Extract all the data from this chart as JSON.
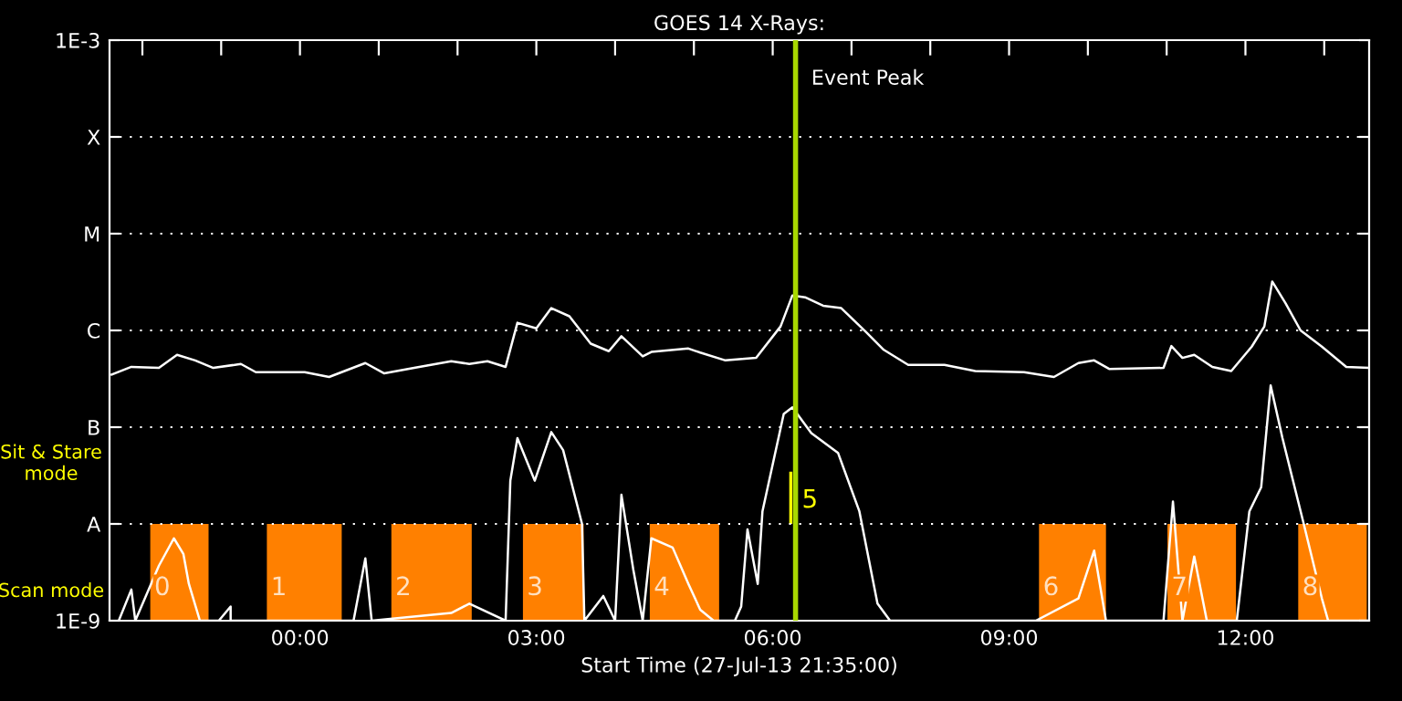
{
  "chart_data": {
    "type": "line",
    "title": "GOES 14 X-Rays:",
    "xlabel": "Start Time (27-Jul-13 21:35:00)",
    "log": "y",
    "grid": "y",
    "xlim": [
      -2.417,
      13.57
    ],
    "xticks": [
      {
        "value": -2,
        "label": null
      },
      {
        "value": -1,
        "label": null
      },
      {
        "value": 0,
        "label": "00:00"
      },
      {
        "value": 1,
        "label": null
      },
      {
        "value": 2,
        "label": null
      },
      {
        "value": 3,
        "label": "03:00"
      },
      {
        "value": 4,
        "label": null
      },
      {
        "value": 5,
        "label": null
      },
      {
        "value": 6,
        "label": "06:00"
      },
      {
        "value": 7,
        "label": null
      },
      {
        "value": 8,
        "label": null
      },
      {
        "value": 9,
        "label": "09:00"
      },
      {
        "value": 10,
        "label": null
      },
      {
        "value": 11,
        "label": null
      },
      {
        "value": 12,
        "label": "12:00"
      },
      {
        "value": 13,
        "label": null
      }
    ],
    "ylim": [
      1e-09,
      0.001
    ],
    "yticks": [
      {
        "value": 1e-09,
        "label": "1E-9"
      },
      {
        "value": 1e-08,
        "label": "A"
      },
      {
        "value": 1e-07,
        "label": "B"
      },
      {
        "value": 1e-06,
        "label": "C"
      },
      {
        "value": 1e-05,
        "label": "M"
      },
      {
        "value": 0.0001,
        "label": "X"
      },
      {
        "value": 0.001,
        "label": "1E-3"
      }
    ],
    "series": [
      {
        "color": "#ffffff",
        "x": [
          -2.39,
          -2.14,
          -1.79,
          -1.56,
          -1.33,
          -1.1,
          -0.75,
          -0.56,
          0.06,
          0.37,
          0.83,
          1.07,
          1.45,
          1.92,
          2.15,
          2.38,
          2.61,
          2.76,
          3.0,
          3.19,
          3.42,
          3.69,
          3.92,
          4.08,
          4.35,
          4.46,
          4.93,
          5.08,
          5.4,
          5.79,
          6.1,
          6.25,
          6.41,
          6.64,
          6.87,
          7.18,
          7.41,
          7.72,
          8.18,
          8.57,
          9.19,
          9.57,
          9.88,
          10.08,
          10.27,
          10.96,
          11.06,
          11.2,
          11.35,
          11.58,
          11.82,
          12.08,
          12.24,
          12.34,
          12.51,
          12.7,
          12.97,
          13.28,
          13.56
        ],
        "values": [
          3.5e-07,
          4.2e-07,
          4.1e-07,
          5.6e-07,
          4.9e-07,
          4.1e-07,
          4.5e-07,
          3.7e-07,
          3.7e-07,
          3.3e-07,
          4.6e-07,
          3.6e-07,
          4.1e-07,
          4.8e-07,
          4.5e-07,
          4.8e-07,
          4.2e-07,
          1.2e-06,
          1.05e-06,
          1.7e-06,
          1.4e-06,
          7.3e-07,
          6.1e-07,
          8.7e-07,
          5.4e-07,
          6e-07,
          6.5e-07,
          5.9e-07,
          4.9e-07,
          5.2e-07,
          1.1e-06,
          2.3e-06,
          2.2e-06,
          1.8e-06,
          1.7e-06,
          9.7e-07,
          6.3e-07,
          4.4e-07,
          4.4e-07,
          3.8e-07,
          3.7e-07,
          3.3e-07,
          4.6e-07,
          4.9e-07,
          4e-07,
          4.1e-07,
          6.9e-07,
          5.2e-07,
          5.6e-07,
          4.2e-07,
          3.8e-07,
          6.8e-07,
          1.1e-06,
          3.2e-06,
          1.9e-06,
          1e-06,
          6.8e-07,
          4.2e-07,
          4.1e-07
        ]
      },
      {
        "color": "#ffffff",
        "x": [
          -2.3,
          -2.14,
          -2.09,
          -1.79,
          -1.6,
          -1.48,
          -1.41,
          -1.27,
          -1.03,
          -0.88,
          -0.88,
          0.68,
          0.83,
          0.91,
          1.92,
          2.15,
          2.61,
          2.67,
          2.76,
          2.98,
          3.19,
          3.34,
          3.58,
          3.61,
          3.85,
          4.0,
          4.08,
          4.23,
          4.35,
          4.46,
          4.73,
          4.93,
          5.08,
          5.25,
          5.52,
          5.6,
          5.68,
          5.81,
          5.87,
          6.14,
          6.25,
          6.49,
          6.83,
          7.1,
          7.33,
          7.49,
          9.34,
          9.88,
          10.08,
          10.23,
          10.96,
          11.08,
          11.2,
          11.35,
          11.51,
          11.89,
          12.05,
          12.2,
          12.32,
          12.47,
          12.74,
          12.97,
          13.05,
          13.56
        ],
        "values": [
          1e-09,
          2.1e-09,
          1e-09,
          3.7e-09,
          7.1e-09,
          4.9e-09,
          2.4e-09,
          1e-09,
          1e-09,
          1.4e-09,
          1e-09,
          1e-09,
          4.4e-09,
          1e-09,
          1.2e-09,
          1.5e-09,
          1e-09,
          2.8e-08,
          7.7e-08,
          2.8e-08,
          8.9e-08,
          5.8e-08,
          1e-08,
          1e-09,
          1.8e-09,
          1e-09,
          2e-08,
          3.4e-09,
          1e-09,
          7.1e-09,
          5.7e-09,
          2.4e-09,
          1.3e-09,
          1e-09,
          1e-09,
          1.4e-09,
          8.8e-09,
          2.4e-09,
          1.35e-08,
          1.37e-07,
          1.6e-07,
          8.7e-08,
          5.4e-08,
          1.35e-08,
          1.5e-09,
          1e-09,
          1e-09,
          1.7e-09,
          5.3e-09,
          1e-09,
          1e-09,
          1.7e-08,
          1e-09,
          4.6e-09,
          1e-09,
          1e-09,
          1.35e-08,
          2.4e-08,
          2.7e-07,
          7.7e-08,
          1e-08,
          1.7e-09,
          1e-09,
          1e-09
        ]
      }
    ],
    "bands": [
      {
        "axis": "x",
        "from": -1.9,
        "to": -1.16,
        "label": "0",
        "color": "#ff8000"
      },
      {
        "axis": "x",
        "from": -0.42,
        "to": 0.53,
        "label": "1",
        "color": "#ff8000"
      },
      {
        "axis": "x",
        "from": 1.16,
        "to": 2.18,
        "label": "2",
        "color": "#ff8000"
      },
      {
        "axis": "x",
        "from": 2.83,
        "to": 3.6,
        "label": "3",
        "color": "#ff8000"
      },
      {
        "axis": "x",
        "from": 4.44,
        "to": 5.32,
        "label": "4",
        "color": "#ff8000"
      },
      {
        "axis": "x",
        "from": 6.21,
        "to": 6.25,
        "label": "5",
        "color": "#ffff00"
      },
      {
        "axis": "x",
        "from": 9.38,
        "to": 10.23,
        "label": "6",
        "color": "#ff8000"
      },
      {
        "axis": "x",
        "from": 11.01,
        "to": 11.88,
        "label": "7",
        "color": "#ff8000"
      },
      {
        "axis": "x",
        "from": 12.67,
        "to": 13.54,
        "label": "8",
        "color": "#ff8000"
      }
    ],
    "ref_lines": [
      {
        "axis": "x",
        "value": 6.29,
        "label": "Event Peak",
        "color": "#a8d800"
      }
    ],
    "annotations": [
      "Sit & Stare\nmode",
      "Scan mode"
    ]
  }
}
